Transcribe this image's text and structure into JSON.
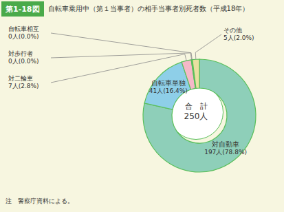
{
  "chart_data": {
    "type": "pie",
    "title": "自転車乗用中（第１当事者）の相手当事者別死者数（平成18年）",
    "title_prefix": "第1-18図",
    "annotations": [
      "合　計",
      "250人"
    ],
    "note": "注　警察庁資料による。",
    "categories": [
      "対自動車",
      "自転車単独",
      "対二輪車",
      "対歩行者",
      "自転車相互",
      "その他"
    ],
    "values": [
      197,
      41,
      7,
      0.4,
      0.4,
      5
    ],
    "value_labels": [
      "197人(78.8%)",
      "41人(16.4%)",
      "7人(2.8%)",
      "0人(0.0%)",
      "0人(0.0%)",
      "5人(2.0%)"
    ],
    "colors": [
      "#8ecfb9",
      "#8ecfe8",
      "#f5b8c8",
      "#b8d080",
      "#b8d080",
      "#e8e0a0"
    ],
    "data_labels": true
  }
}
